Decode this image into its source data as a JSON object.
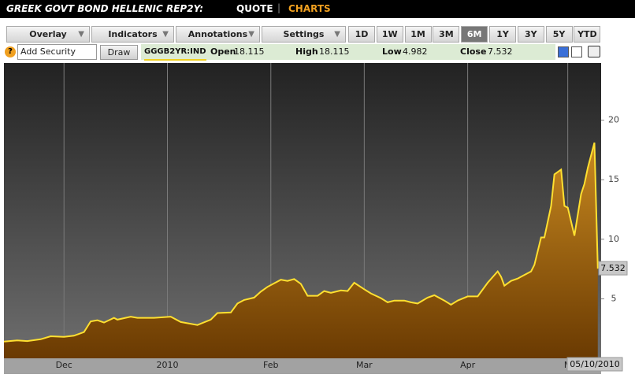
{
  "header": {
    "title": "GREEK GOVT BOND HELLENIC REP2Y:",
    "tabs": [
      "QUOTE",
      "CHARTS"
    ]
  },
  "toolbar": {
    "menus": [
      "Overlay",
      "Indicators",
      "Annotations",
      "Settings"
    ],
    "ranges": [
      "1D",
      "1W",
      "1M",
      "3M",
      "6M",
      "1Y",
      "3Y",
      "5Y",
      "YTD"
    ],
    "input_placeholder": "Add Security",
    "button": "Draw"
  },
  "quote": {
    "symbol": "GGGB2YR:IND",
    "fields": [
      {
        "label": "Open",
        "value": 18.115
      },
      {
        "label": "High",
        "value": 18.115
      },
      {
        "label": "Low",
        "value": 4.982
      },
      {
        "label": "Close",
        "value": 7.532
      }
    ]
  },
  "chart_data": {
    "type": "area",
    "x": [
      0,
      4,
      7,
      11,
      14,
      18,
      21,
      24,
      26,
      28,
      30,
      33,
      34,
      38,
      40,
      45,
      50,
      53,
      58,
      62,
      64,
      68,
      70,
      72,
      75,
      77,
      79,
      83,
      85,
      87,
      89,
      91,
      94,
      96,
      98,
      101,
      103,
      105,
      108,
      110,
      113,
      115,
      117,
      120,
      122,
      124,
      127,
      129,
      132,
      134,
      136,
      139,
      142,
      145,
      148,
      149,
      150,
      152,
      154,
      155,
      158,
      159,
      161,
      162,
      164,
      165,
      167,
      168,
      169,
      171,
      173,
      174,
      175,
      177,
      178
    ],
    "values": [
      1.4,
      1.5,
      1.45,
      1.6,
      1.85,
      1.8,
      1.9,
      2.2,
      3.1,
      3.2,
      3.0,
      3.4,
      3.25,
      3.5,
      3.4,
      3.4,
      3.5,
      3.05,
      2.8,
      3.25,
      3.8,
      3.85,
      4.6,
      4.9,
      5.1,
      5.6,
      6.0,
      6.6,
      6.5,
      6.65,
      6.25,
      5.25,
      5.25,
      5.65,
      5.5,
      5.7,
      5.65,
      6.35,
      5.8,
      5.45,
      5.05,
      4.7,
      4.85,
      4.85,
      4.7,
      4.6,
      5.1,
      5.3,
      4.85,
      4.5,
      4.85,
      5.2,
      5.2,
      6.35,
      7.3,
      6.85,
      6.1,
      6.5,
      6.7,
      6.85,
      7.3,
      7.85,
      10.15,
      10.15,
      12.8,
      15.45,
      15.85,
      12.8,
      12.65,
      10.3,
      13.8,
      14.65,
      16.0,
      18.115,
      7.532
    ],
    "color": "#ffe030",
    "fill_top": "#c98a20",
    "fill_bottom": "#6a3a02",
    "xlim": [
      0,
      179
    ],
    "xticks": [
      {
        "value": 18,
        "label": "Dec"
      },
      {
        "value": 49,
        "label": "2010"
      },
      {
        "value": 80,
        "label": "Feb"
      },
      {
        "value": 108,
        "label": "Mar"
      },
      {
        "value": 139,
        "label": "Apr"
      },
      {
        "value": 169,
        "label": "M"
      }
    ],
    "ylim": [
      0,
      24.8
    ],
    "yticks": [
      5,
      10,
      15,
      20
    ],
    "xgrid": true,
    "last_date": "05/10/2010"
  }
}
